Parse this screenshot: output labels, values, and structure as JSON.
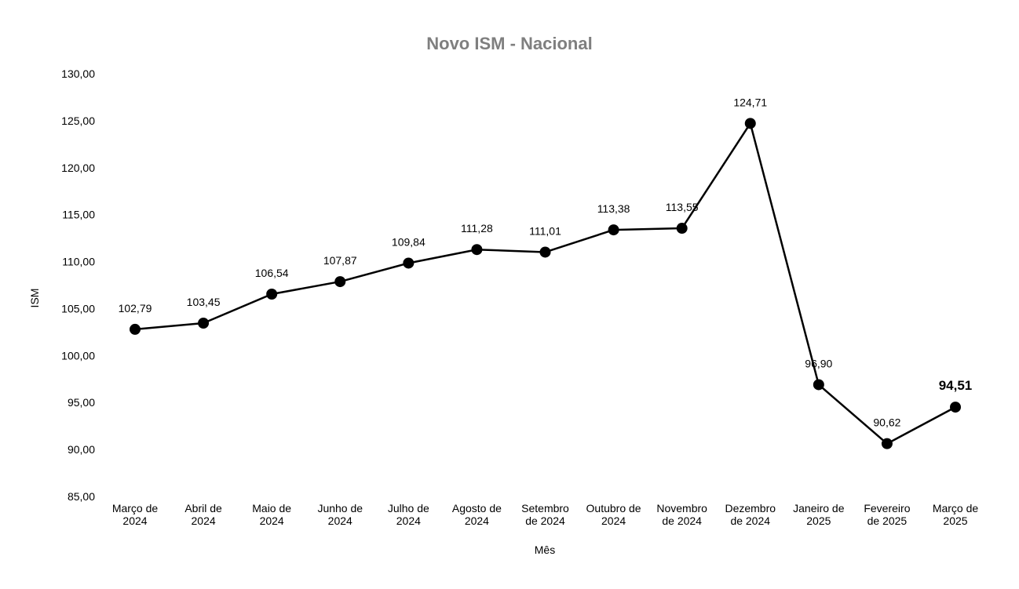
{
  "chart_data": {
    "type": "line",
    "title": "Novo ISM - Nacional",
    "xlabel": "Mês",
    "ylabel": "ISM",
    "categories": [
      [
        "Março de",
        "2024"
      ],
      [
        "Abril de",
        "2024"
      ],
      [
        "Maio de",
        "2024"
      ],
      [
        "Junho de",
        "2024"
      ],
      [
        "Julho de",
        "2024"
      ],
      [
        "Agosto de",
        "2024"
      ],
      [
        "Setembro",
        "de 2024"
      ],
      [
        "Outubro de",
        "2024"
      ],
      [
        "Novembro",
        "de 2024"
      ],
      [
        "Dezembro",
        "de 2024"
      ],
      [
        "Janeiro de",
        "2025"
      ],
      [
        "Fevereiro",
        "de 2025"
      ],
      [
        "Março de",
        "2025"
      ]
    ],
    "series": [
      {
        "values": [
          102.79,
          103.45,
          106.54,
          107.87,
          109.84,
          111.28,
          111.01,
          113.38,
          113.55,
          124.71,
          96.9,
          90.62,
          94.51
        ],
        "labels": [
          "102,79",
          "103,45",
          "106,54",
          "107,87",
          "109,84",
          "111,28",
          "111,01",
          "113,38",
          "113,55",
          "124,71",
          "96,90",
          "90,62",
          "94,51"
        ],
        "color": "#000000"
      }
    ],
    "highlight_last_label": true,
    "ylim": [
      85,
      130
    ],
    "yticks": [
      "85,00",
      "90,00",
      "95,00",
      "100,00",
      "105,00",
      "110,00",
      "115,00",
      "120,00",
      "125,00",
      "130,00"
    ],
    "grid": false,
    "legend": "none"
  }
}
